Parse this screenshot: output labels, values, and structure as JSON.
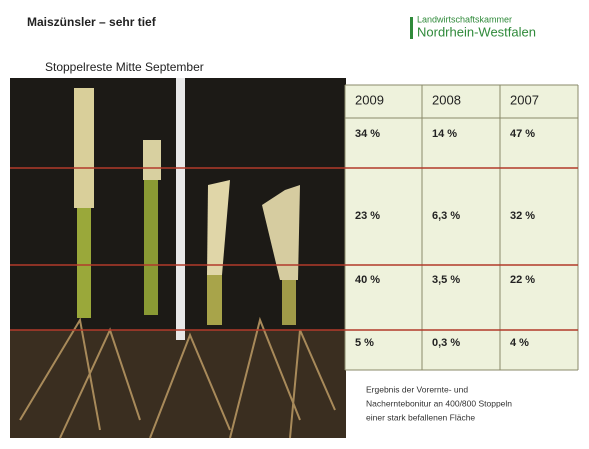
{
  "header": {
    "title": "Maiszünsler – sehr tief",
    "logo_line1": "Landwirtschaftskammer",
    "logo_line2": "Nordrhein-Westfalen"
  },
  "photo_caption": "Stoppelreste Mitte September",
  "table": {
    "header": [
      "2009",
      "2008",
      "2007"
    ],
    "rows": [
      [
        "34 %",
        "14 %",
        "47 %"
      ],
      [
        "23 %",
        "6,3 %",
        "32 %"
      ],
      [
        "40 %",
        "3,5 %",
        "22 %"
      ],
      [
        "5 %",
        "0,3 %",
        "4 %"
      ]
    ]
  },
  "note": [
    "Ergebnis der Vorernte- und",
    "Nacherntebonitur an 400/800 Stoppeln",
    "einer stark befallenen Fläche"
  ]
}
